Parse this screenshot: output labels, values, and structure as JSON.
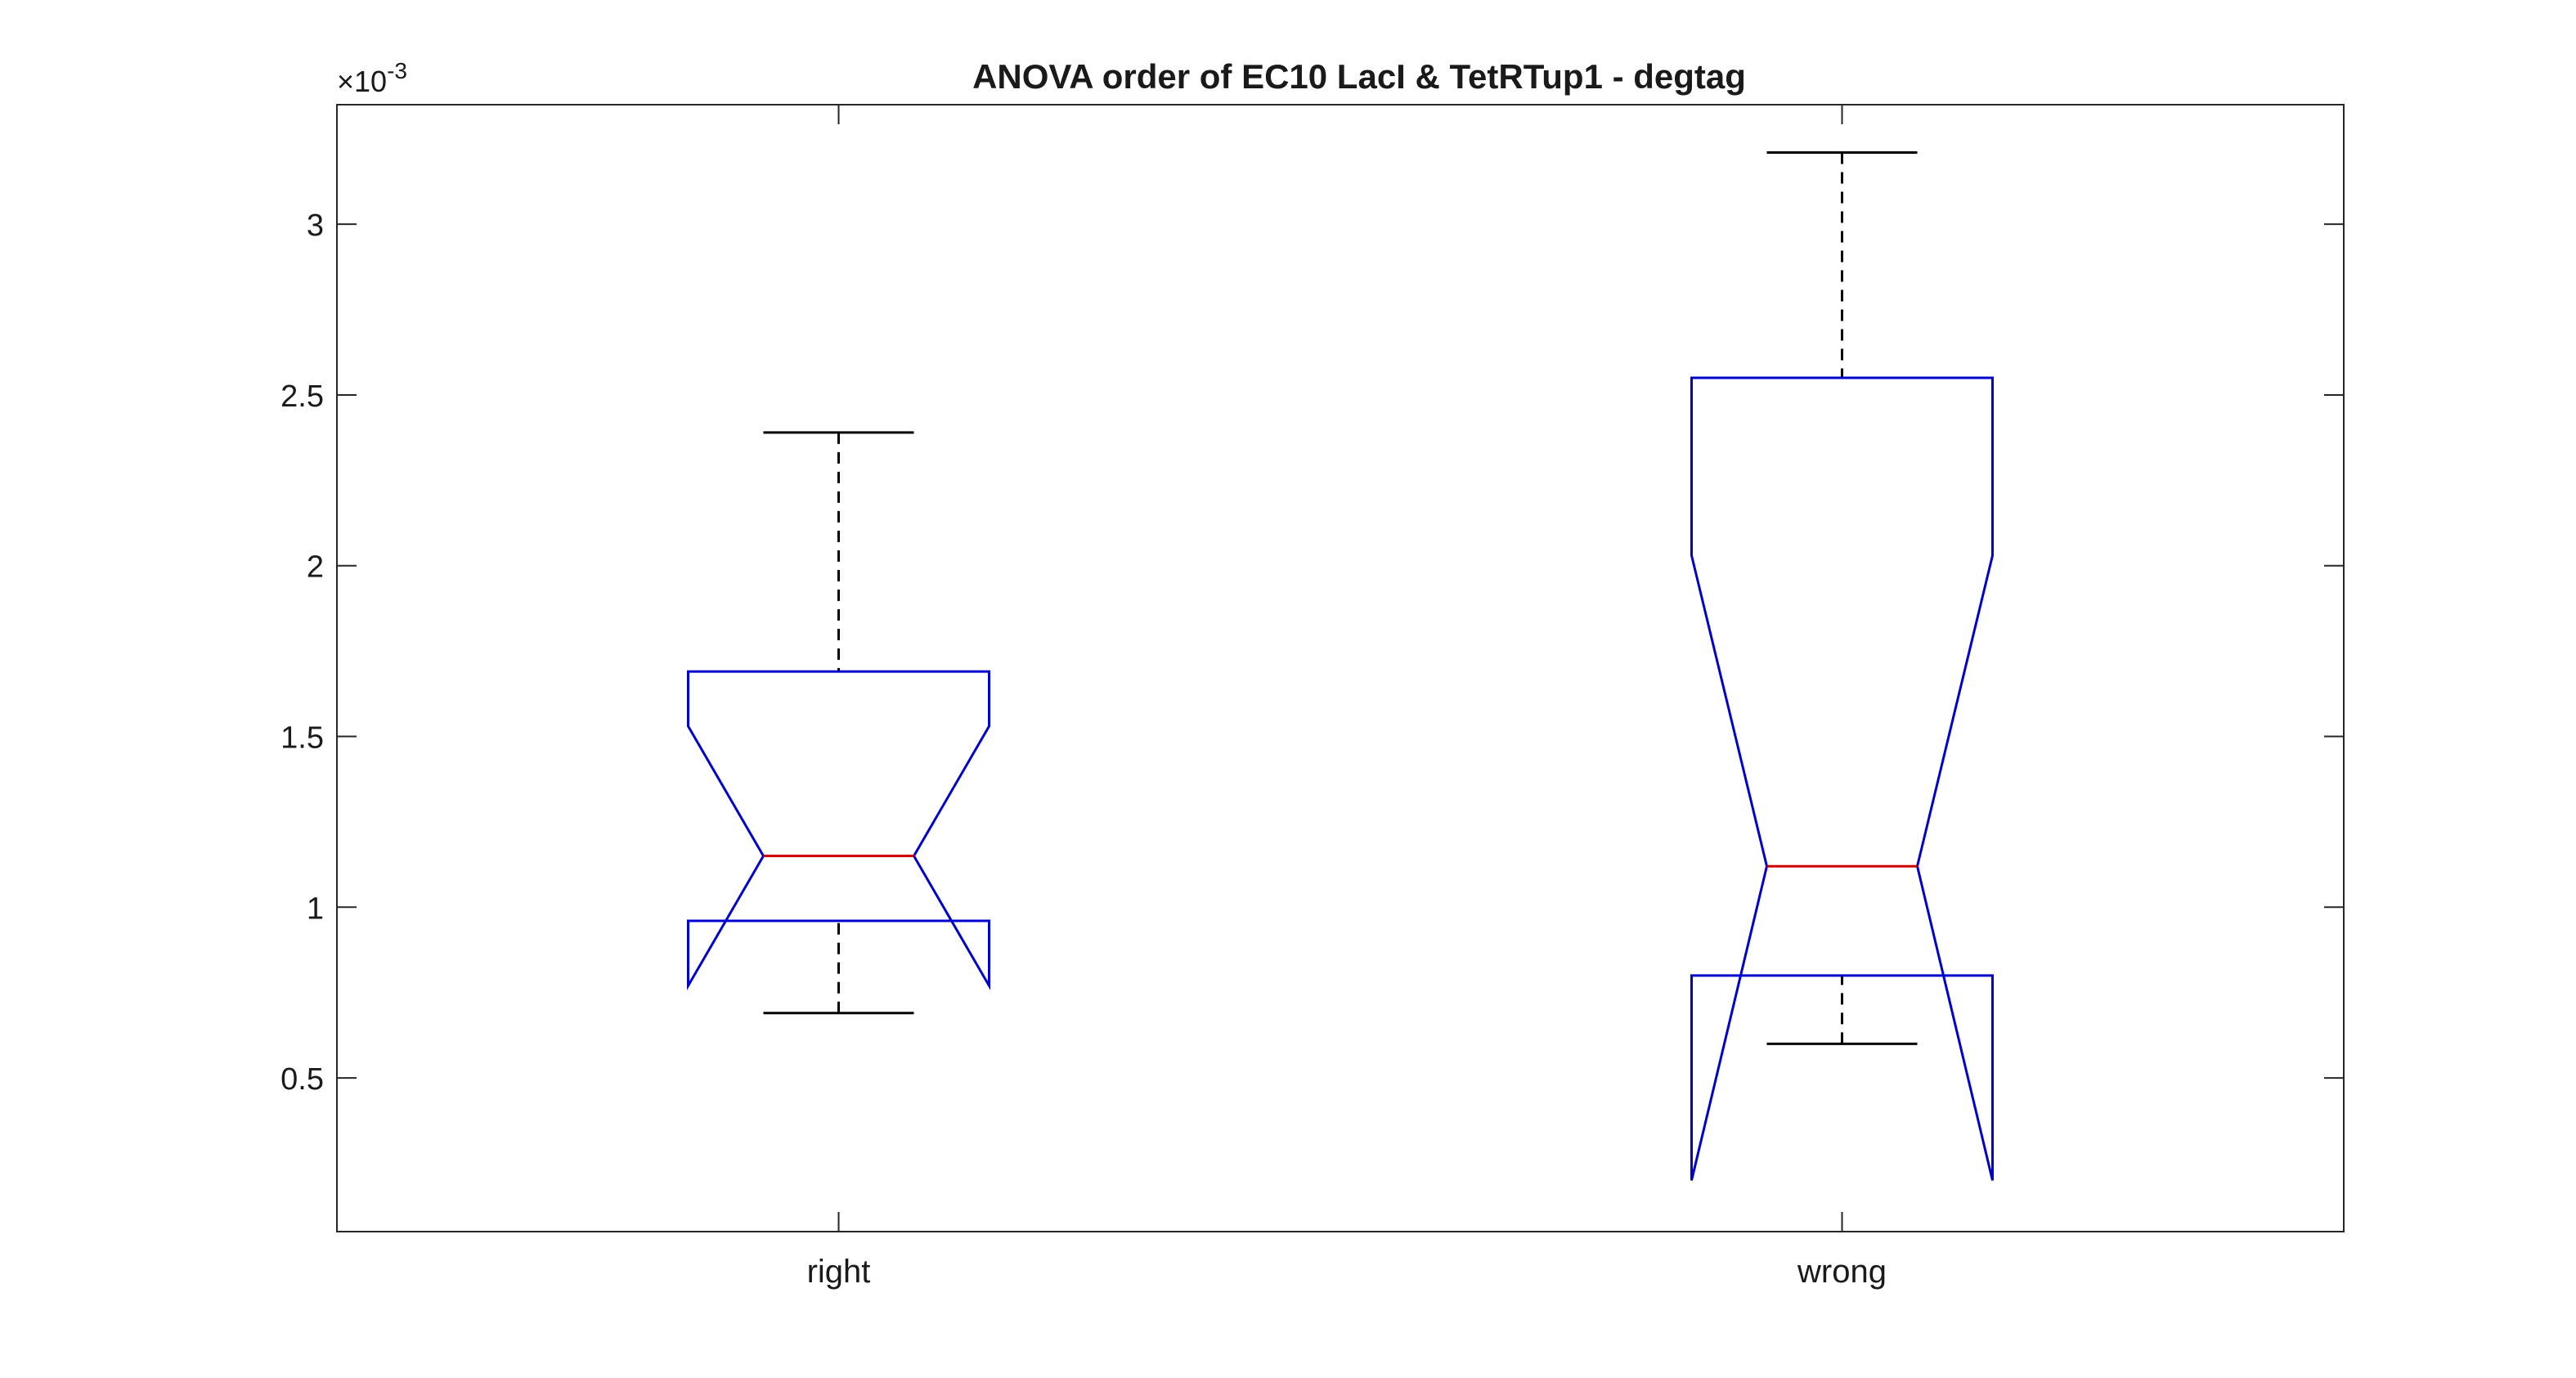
{
  "chart_data": {
    "type": "boxplot",
    "title": "ANOVA order of EC10 LacI & TetRTup1 - degtag",
    "xlabel": "",
    "ylabel": "",
    "y_exponent_label": "×10",
    "y_exponent_power": "-3",
    "ylim": [
      0.05,
      3.35
    ],
    "y_ticks": [
      0.5,
      1,
      1.5,
      2,
      2.5,
      3
    ],
    "y_tick_labels": [
      "0.5",
      "1",
      "1.5",
      "2",
      "2.5",
      "3"
    ],
    "categories": [
      "right",
      "wrong"
    ],
    "notched": true,
    "grid": false,
    "legend": "none",
    "boxes": [
      {
        "category": "right",
        "whisker_low": 0.69,
        "q1": 0.96,
        "notch_low": 0.77,
        "median": 1.15,
        "notch_high": 1.53,
        "q3": 1.69,
        "whisker_high": 2.39
      },
      {
        "category": "wrong",
        "whisker_low": 0.6,
        "q1": 0.8,
        "notch_low": 0.2,
        "median": 1.12,
        "notch_high": 2.03,
        "q3": 2.55,
        "whisker_high": 3.21
      }
    ],
    "colors": {
      "box": "#0000cc",
      "median": "#cc0000",
      "whisker": "#000000",
      "axes": "#262626"
    }
  }
}
